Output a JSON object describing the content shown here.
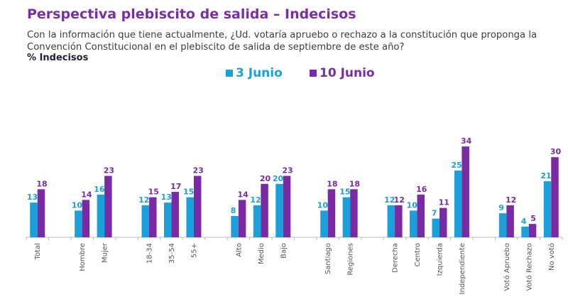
{
  "header": {
    "title": "Perspectiva plebiscito de salida – Indecisos",
    "question": "Con la información que tiene actualmente, ¿Ud. votaría apruebo o rechazo a la constitución que proponga la Convención Constitucional en el plebiscito de salida de septiembre de este año?",
    "subtitle": "% Indecisos"
  },
  "colors": {
    "series_1": "#1aa1dc",
    "series_2": "#7b2aa6",
    "axis": "#bbbbbb"
  },
  "chart_data": {
    "type": "bar",
    "title": "Perspectiva plebiscito de salida – Indecisos",
    "subtitle": "% Indecisos",
    "xlabel": "",
    "ylabel": "",
    "ylim": [
      0,
      34
    ],
    "grid": false,
    "legend_position": "top-center",
    "groups": [
      [
        "Total"
      ],
      [
        "Hombre",
        "Mujer"
      ],
      [
        "18-34",
        "35-54",
        "55+"
      ],
      [
        "Alto",
        "Medio",
        "Bajo"
      ],
      [
        "Santiago",
        "Regiones"
      ],
      [
        "Derecha",
        "Centro",
        "Izquierda",
        "Independiente"
      ],
      [
        "Votó Apruebo",
        "Votó Rechazo",
        "No votó"
      ]
    ],
    "categories": [
      "Total",
      "Hombre",
      "Mujer",
      "18-34",
      "35-54",
      "55+",
      "Alto",
      "Medio",
      "Bajo",
      "Santiago",
      "Regiones",
      "Derecha",
      "Centro",
      "Izquierda",
      "Independiente",
      "Votó Apruebo",
      "Votó Rechazo",
      "No votó"
    ],
    "series": [
      {
        "name": "3 Junio",
        "values": [
          13,
          10,
          16,
          12,
          13,
          15,
          8,
          12,
          20,
          10,
          15,
          12,
          10,
          7,
          25,
          9,
          4,
          21
        ]
      },
      {
        "name": "10 Junio",
        "values": [
          18,
          14,
          23,
          15,
          17,
          23,
          14,
          20,
          23,
          18,
          18,
          12,
          16,
          11,
          34,
          12,
          5,
          30
        ]
      }
    ]
  }
}
